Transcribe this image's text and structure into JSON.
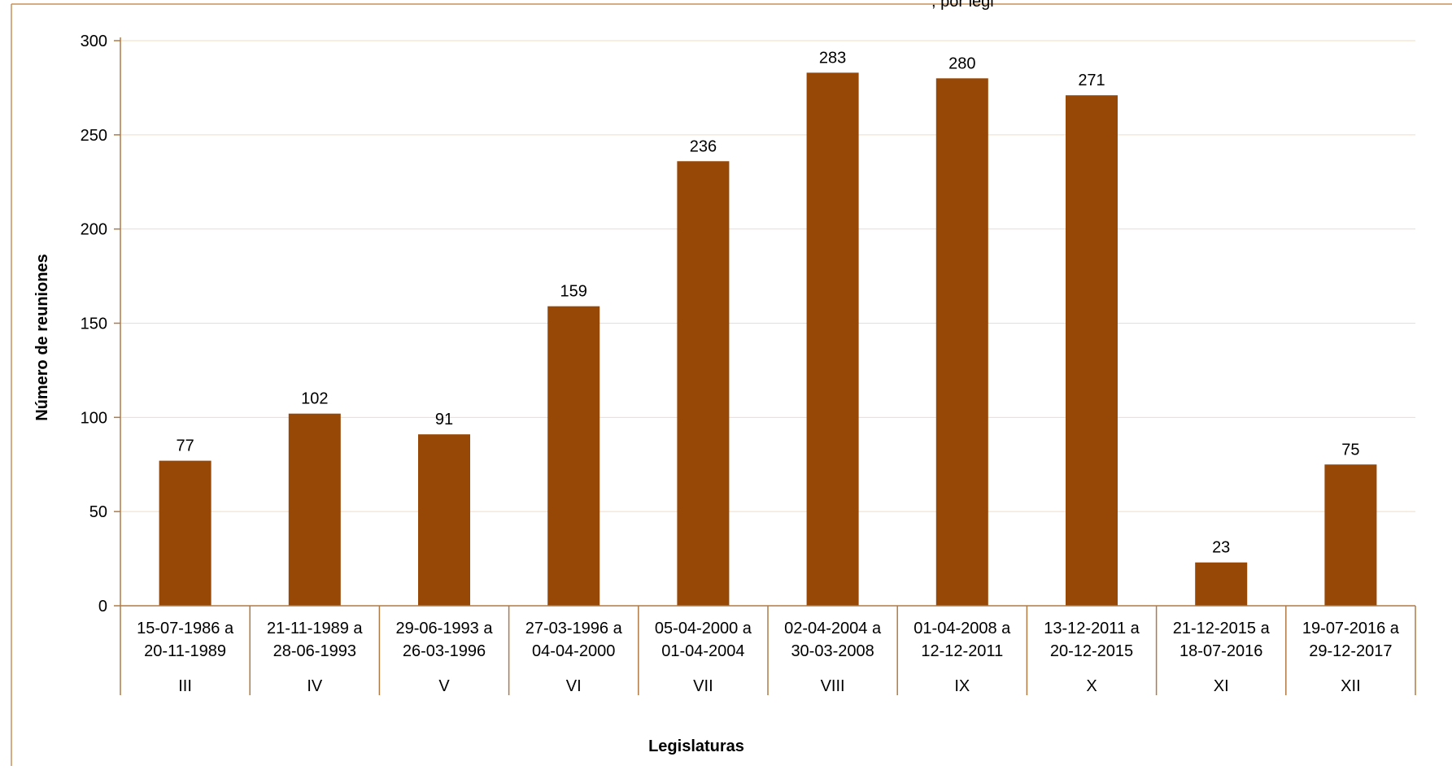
{
  "chart_data": {
    "type": "bar",
    "title": ", por legi",
    "xlabel": "Legislaturas",
    "ylabel": "Número de reuniones",
    "ylim": [
      0,
      300
    ],
    "yticks": [
      "0",
      "50",
      "100",
      "150",
      "200",
      "250",
      "300"
    ],
    "grid": true,
    "legend": "none",
    "categories": [
      {
        "dates_line1": "15-07-1986 a",
        "dates_line2": "20-11-1989",
        "legislature": "III"
      },
      {
        "dates_line1": "21-11-1989 a",
        "dates_line2": "28-06-1993",
        "legislature": "IV"
      },
      {
        "dates_line1": "29-06-1993 a",
        "dates_line2": "26-03-1996",
        "legislature": "V"
      },
      {
        "dates_line1": "27-03-1996 a",
        "dates_line2": "04-04-2000",
        "legislature": "VI"
      },
      {
        "dates_line1": "05-04-2000 a",
        "dates_line2": "01-04-2004",
        "legislature": "VII"
      },
      {
        "dates_line1": "02-04-2004 a",
        "dates_line2": "30-03-2008",
        "legislature": "VIII"
      },
      {
        "dates_line1": "01-04-2008 a",
        "dates_line2": "12-12-2011",
        "legislature": "IX"
      },
      {
        "dates_line1": "13-12-2011 a",
        "dates_line2": "20-12-2015",
        "legislature": "X"
      },
      {
        "dates_line1": "21-12-2015 a",
        "dates_line2": "18-07-2016",
        "legislature": "XI"
      },
      {
        "dates_line1": "19-07-2016 a",
        "dates_line2": "29-12-2017",
        "legislature": "XII"
      }
    ],
    "values": [
      77,
      102,
      91,
      159,
      236,
      283,
      280,
      271,
      23,
      75
    ],
    "colors": {
      "bar": "#974706",
      "grid": "#f2dcc0",
      "axis": "#b07a45",
      "frame": "#c8905a"
    }
  }
}
